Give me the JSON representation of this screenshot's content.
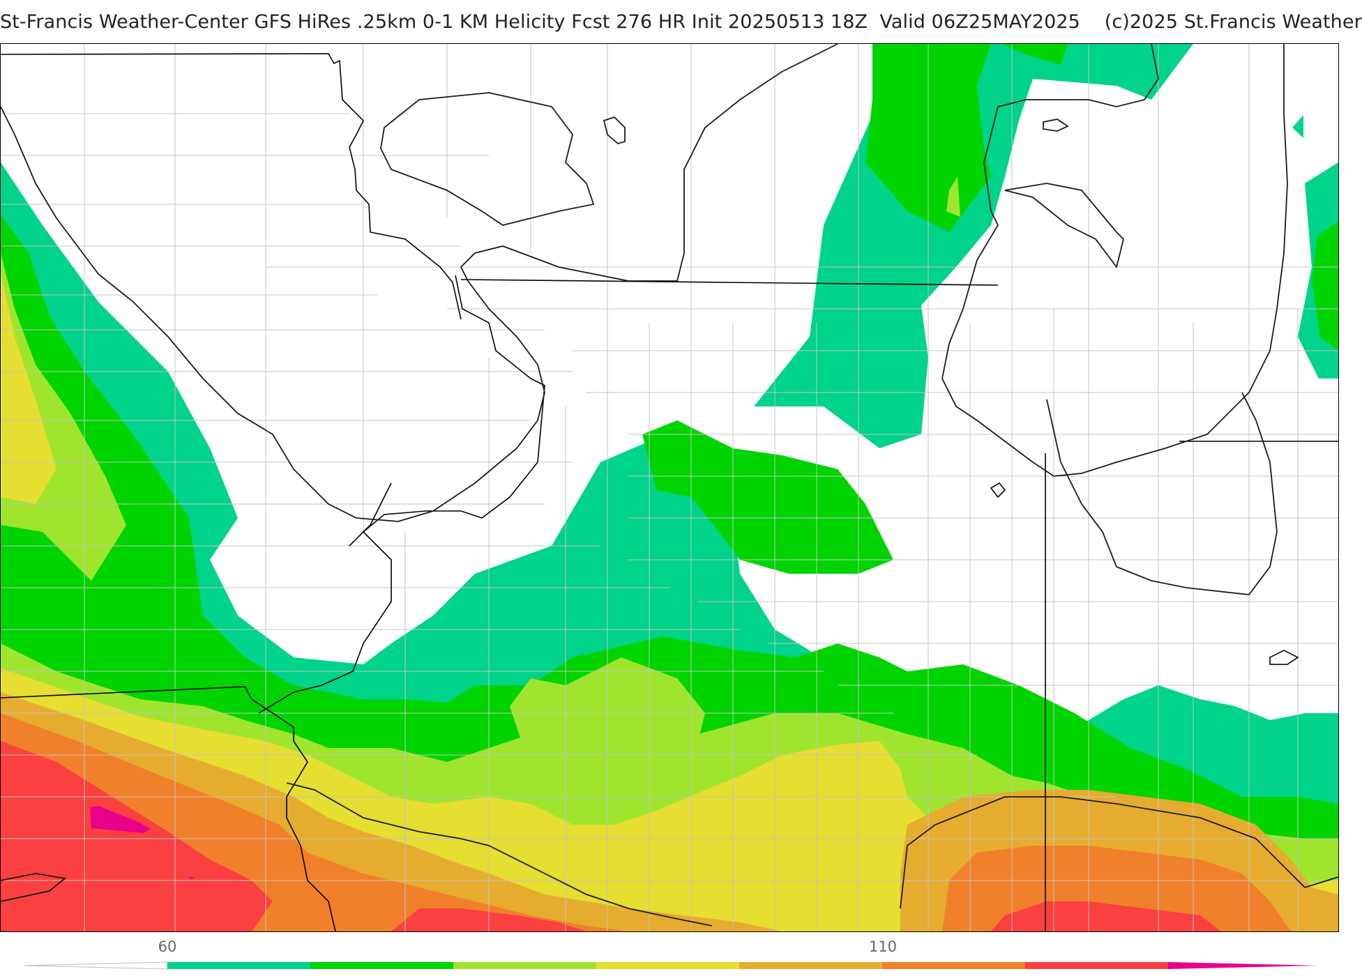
{
  "title": "St-Francis Weather-Center GFS HiRes .25km 0-1 KM Helicity Fcst 276 HR Init 20250513 18Z  Valid 06Z25MAY2025    (c)2025 St.Francis Weather",
  "colorbar": {
    "tick_labels": [
      "60",
      "110"
    ],
    "colors": [
      "#00d38a",
      "#00d400",
      "#9fe52e",
      "#e6de30",
      "#e6ac30",
      "#f0802a",
      "#fa4040",
      "#e8008a"
    ]
  },
  "colors": {
    "band_1": "#00d38a",
    "band_2": "#00d400",
    "band_3": "#9fe52e",
    "band_4": "#e6de30",
    "band_5": "#e6ac30",
    "band_6": "#f0802a",
    "band_7": "#fa4040",
    "band_8": "#e8008a"
  }
}
